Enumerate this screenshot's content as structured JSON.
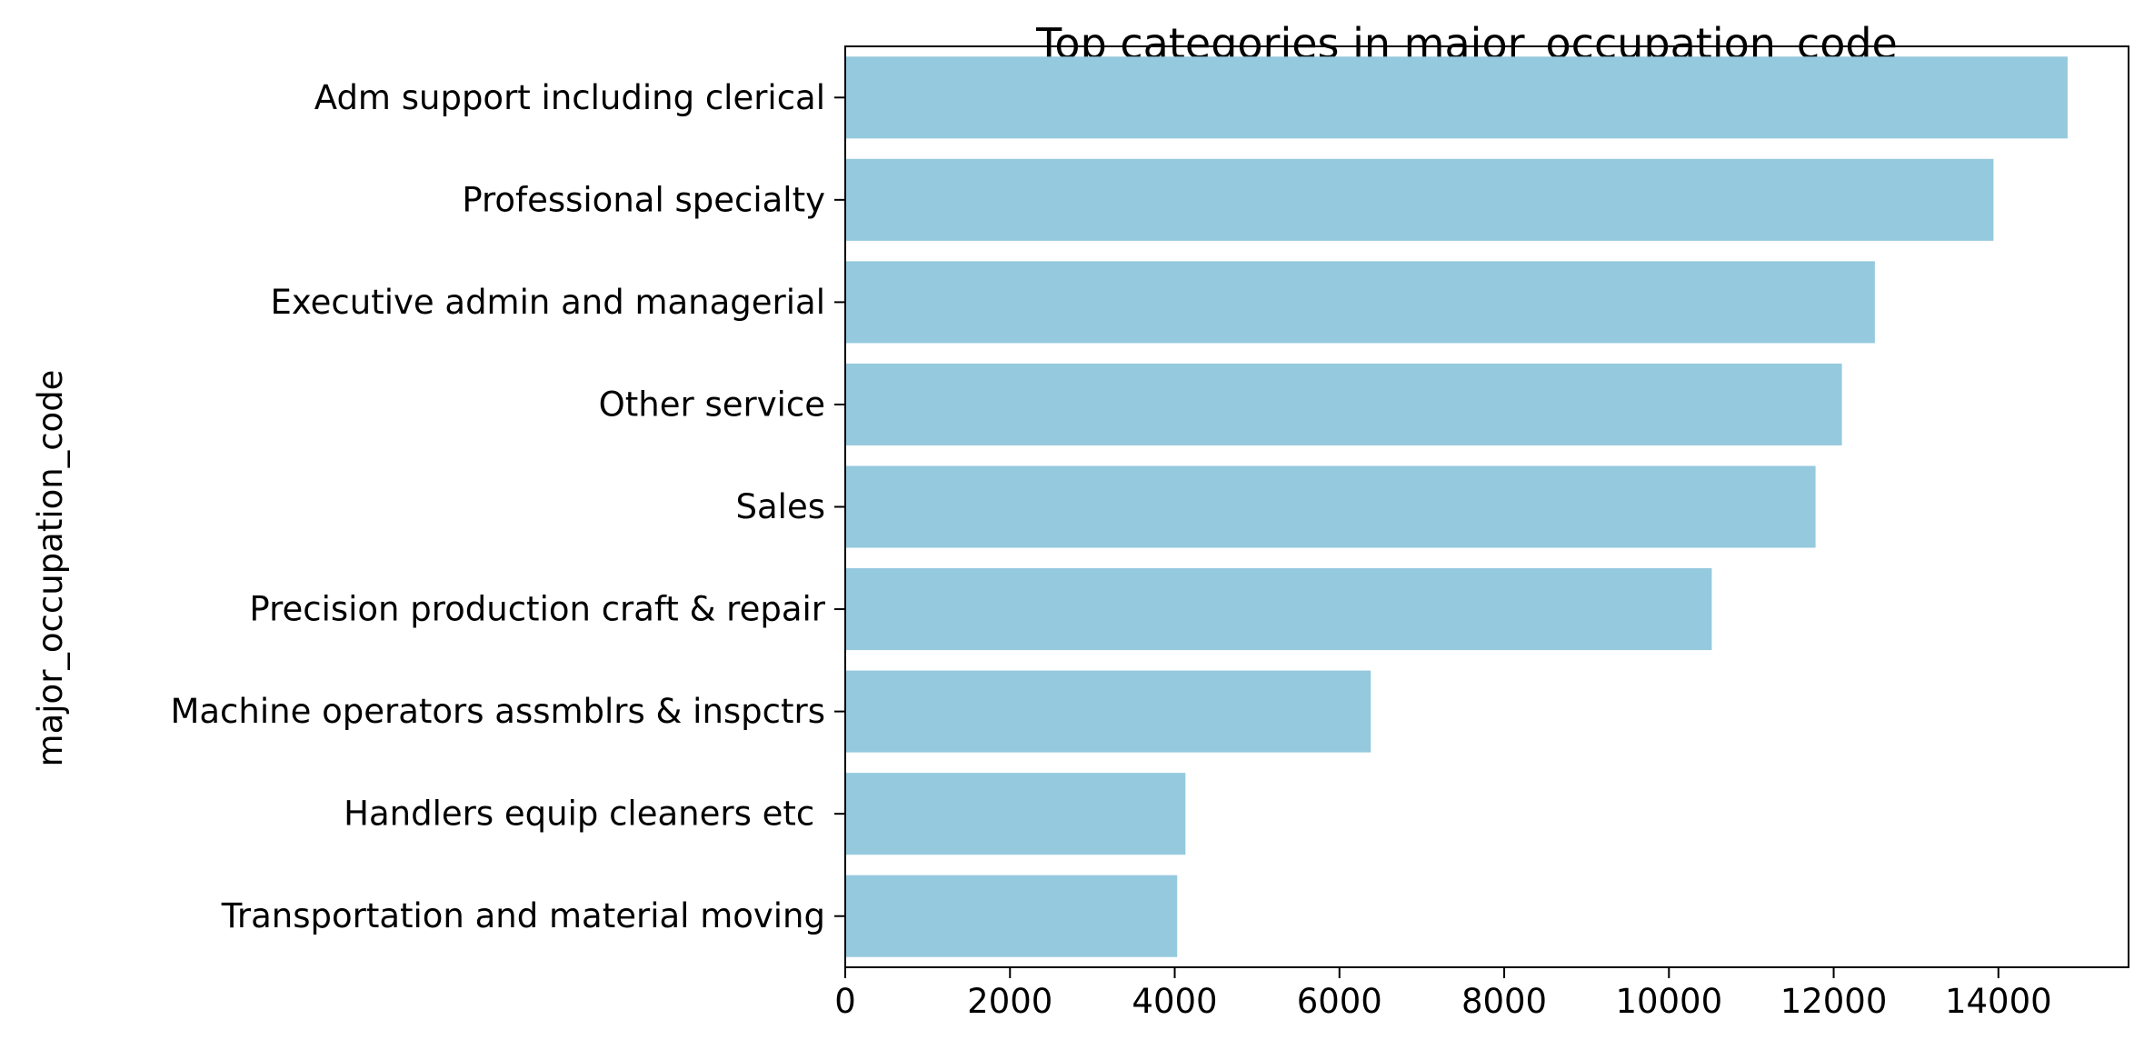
{
  "chart_data": {
    "type": "bar",
    "orientation": "horizontal",
    "title": "Top categories in major_occupation_code",
    "xlabel": "",
    "ylabel": "major_occupation_code",
    "categories": [
      "Adm support including clerical",
      "Professional specialty",
      "Executive admin and managerial",
      "Other service",
      "Sales",
      "Precision production craft & repair",
      "Machine operators assmblrs & inspctrs",
      "Handlers equip cleaners etc ",
      "Transportation and material moving"
    ],
    "values": [
      14840,
      13940,
      12500,
      12100,
      11780,
      10520,
      6380,
      4130,
      4030
    ],
    "xlim": [
      0,
      15580
    ],
    "xticks": [
      0,
      2000,
      4000,
      6000,
      8000,
      10000,
      12000,
      14000
    ],
    "xtick_labels": [
      "0",
      "2000",
      "4000",
      "6000",
      "8000",
      "10000",
      "12000",
      "14000"
    ],
    "bar_color": "#95c9de",
    "grid": false,
    "legend": "none"
  }
}
